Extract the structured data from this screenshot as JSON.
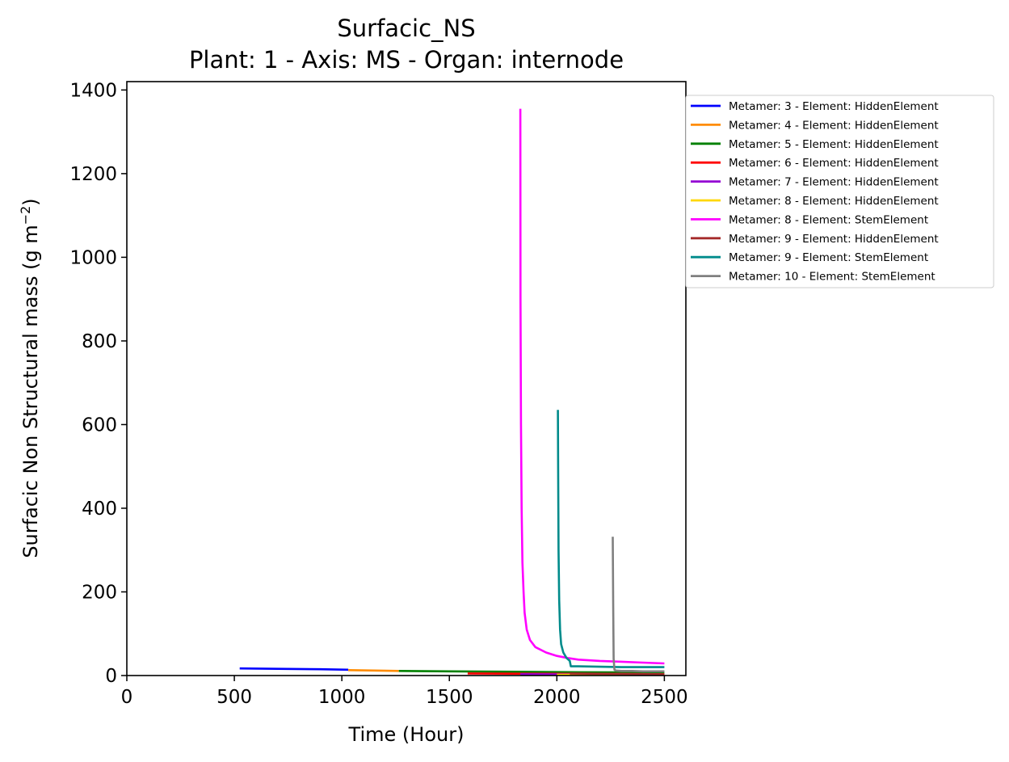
{
  "chart_data": {
    "type": "line",
    "title": "Surfacic_NS",
    "subtitle": "Plant: 1 - Axis: MS - Organ: internode",
    "xlabel": "Time (Hour)",
    "ylabel": "Surfacic Non Structural mass (g m",
    "ylabel_sup": "−2",
    "ylabel_end": ")",
    "xlim": [
      0,
      2600
    ],
    "ylim": [
      0,
      1420
    ],
    "xticks": [
      0,
      500,
      1000,
      1500,
      2000,
      2500
    ],
    "yticks": [
      0,
      200,
      400,
      600,
      800,
      1000,
      1200,
      1400
    ],
    "grid": false,
    "legend_position": "outside right, top",
    "series": [
      {
        "name": "Metamer: 3 - Element: HiddenElement",
        "color": "#0000ff",
        "x": [
          525,
          700,
          900,
          1030
        ],
        "y": [
          17,
          16,
          15,
          14
        ]
      },
      {
        "name": "Metamer: 4 - Element: HiddenElement",
        "color": "#ff8c00",
        "x": [
          1030,
          1150,
          1265
        ],
        "y": [
          13,
          12,
          11
        ]
      },
      {
        "name": "Metamer: 5 - Element: HiddenElement",
        "color": "#008000",
        "x": [
          1265,
          1500,
          1800,
          2100,
          2350,
          2500
        ],
        "y": [
          11,
          10,
          9,
          8,
          7.5,
          7
        ]
      },
      {
        "name": "Metamer: 6 - Element: HiddenElement",
        "color": "#ff0000",
        "x": [
          1585,
          1800,
          2100,
          2350,
          2500
        ],
        "y": [
          5,
          4.5,
          4,
          3.5,
          3
        ]
      },
      {
        "name": "Metamer: 7 - Element: HiddenElement",
        "color": "#9400d3",
        "x": [
          1830,
          2100,
          2500
        ],
        "y": [
          3,
          2.5,
          2
        ]
      },
      {
        "name": "Metamer: 8 - Element: HiddenElement",
        "color": "#ffd700",
        "x": [
          2000,
          2250,
          2500
        ],
        "y": [
          2,
          2,
          2
        ]
      },
      {
        "name": "Metamer: 8 - Element: StemElement",
        "color": "#ff00ff",
        "x": [
          1830,
          1831,
          1833,
          1836,
          1840,
          1845,
          1850,
          1860,
          1875,
          1900,
          1950,
          2000,
          2050,
          2100,
          2200,
          2300,
          2400,
          2500
        ],
        "y": [
          1355,
          900,
          600,
          400,
          270,
          200,
          150,
          110,
          85,
          68,
          55,
          47,
          42,
          38,
          35,
          33,
          31,
          29
        ]
      },
      {
        "name": "Metamer: 9 - Element: HiddenElement",
        "color": "#a52a2a",
        "x": [
          2060,
          2250,
          2500
        ],
        "y": [
          5,
          4,
          3
        ]
      },
      {
        "name": "Metamer: 9 - Element: StemElement",
        "color": "#008b8b",
        "x": [
          2005,
          2006,
          2008,
          2011,
          2015,
          2020,
          2030,
          2045,
          2060,
          2065,
          2100,
          2200,
          2300,
          2400,
          2500
        ],
        "y": [
          635,
          500,
          300,
          180,
          110,
          75,
          55,
          42,
          35,
          22,
          22,
          21,
          20,
          20,
          20
        ]
      },
      {
        "name": "Metamer: 10 - Element: StemElement",
        "color": "#808080",
        "x": [
          2260,
          2262,
          2264,
          2268,
          2275,
          2300,
          2350,
          2400,
          2450,
          2500
        ],
        "y": [
          332,
          180,
          40,
          14,
          12,
          11,
          11,
          10,
          10,
          10
        ]
      }
    ]
  }
}
